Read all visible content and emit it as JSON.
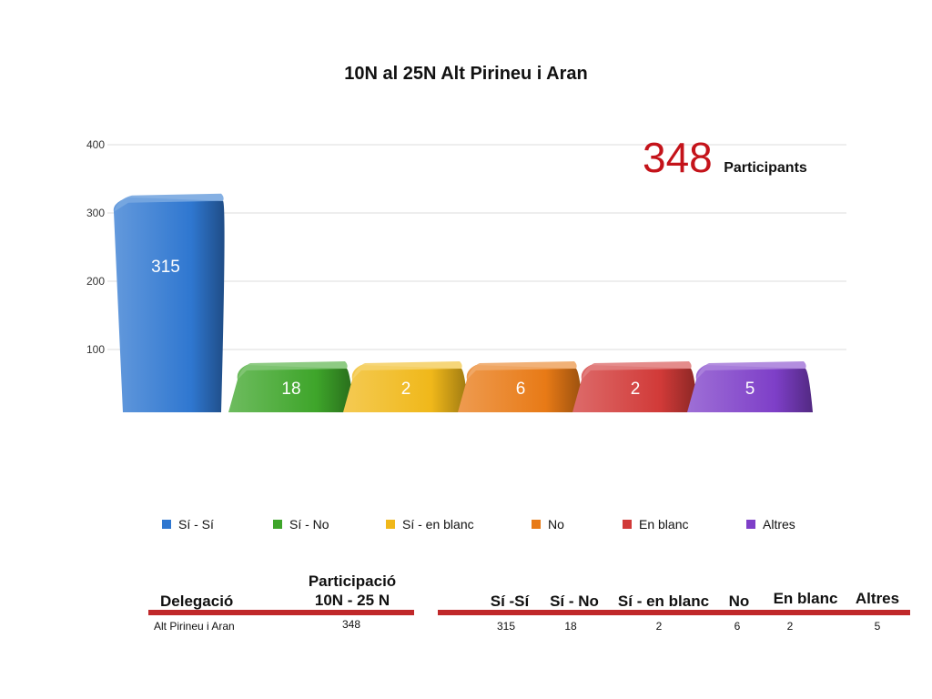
{
  "chart_data": {
    "type": "bar",
    "title": "10N al 25N Alt Pirineu i Aran",
    "categories": [
      "Sí - Sí",
      "Sí - No",
      "Sí - en blanc",
      "No",
      "En blanc",
      "Altres"
    ],
    "values": [
      315,
      18,
      2,
      6,
      2,
      5
    ],
    "colors": [
      "#2f77d0",
      "#3ea52a",
      "#f0b81a",
      "#e87a16",
      "#d13a38",
      "#7e3fc8"
    ],
    "yticks": [
      "100",
      "200",
      "300",
      "400"
    ],
    "ylim": [
      0,
      400
    ],
    "grid": true,
    "legend_position": "bottom"
  },
  "participants": {
    "count": "348",
    "label": "Participants"
  },
  "table": {
    "headers": {
      "delegacio": "Delegació",
      "participacio_line1": "Participació",
      "participacio_line2": "10N - 25 N",
      "si_si": "Sí -Sí",
      "si_no": "Sí - No",
      "si_blanc": "Sí - en blanc",
      "no": "No",
      "en_blanc": "En blanc",
      "altres": "Altres"
    },
    "row": {
      "delegacio": "Alt Pirineu i Aran",
      "participacio": "348",
      "si_si": "315",
      "si_no": "18",
      "si_blanc": "2",
      "no": "6",
      "en_blanc": "2",
      "altres": "5"
    }
  }
}
